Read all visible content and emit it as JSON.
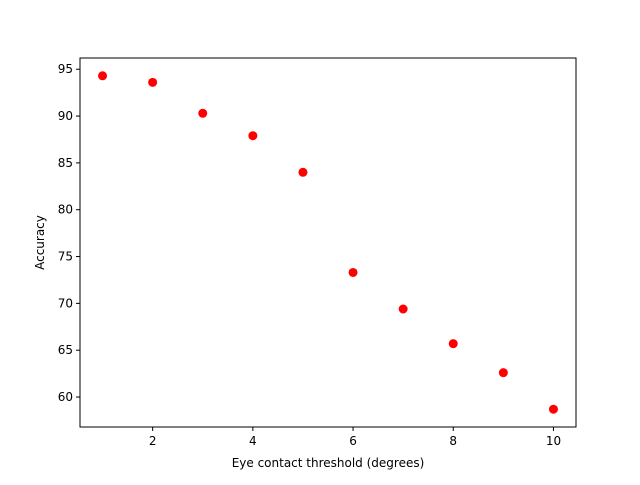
{
  "chart_data": {
    "type": "scatter",
    "title": "",
    "xlabel": "Eye contact threshold (degrees)",
    "ylabel": "Accuracy",
    "xlim": [
      0.55,
      10.45
    ],
    "ylim": [
      56.8,
      96.2
    ],
    "xticks": [
      2,
      4,
      6,
      8,
      10
    ],
    "yticks": [
      60,
      65,
      70,
      75,
      80,
      85,
      90,
      95
    ],
    "grid": false,
    "marker_color": "#ff0000",
    "series": [
      {
        "x": [
          1,
          2,
          3,
          4,
          5,
          6,
          7,
          8,
          9,
          10
        ],
        "y": [
          94.3,
          93.6,
          90.3,
          87.9,
          84.0,
          73.3,
          69.4,
          65.7,
          62.6,
          58.7
        ]
      }
    ]
  }
}
